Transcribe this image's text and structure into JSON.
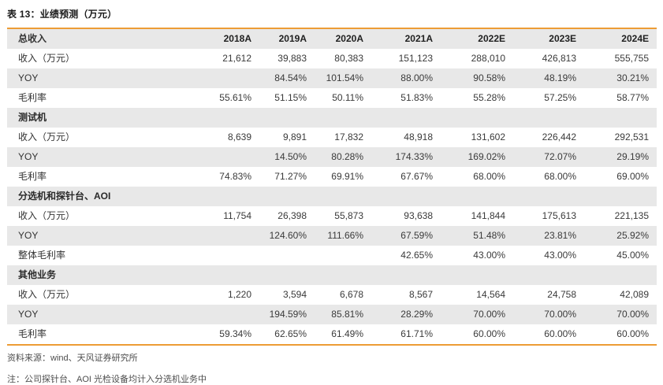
{
  "title": "表 13：业绩预测（万元）",
  "source": "资料来源：wind、天风证券研究所",
  "note": "注：公司探针台、AOI 光检设备均计入分选机业务中",
  "colors": {
    "accent": "#ED9C35",
    "row_shade": "#E8E8E8"
  },
  "table": {
    "columns": [
      "总收入",
      "2018A",
      "2019A",
      "2020A",
      "2021A",
      "2022E",
      "2023E",
      "2024E"
    ],
    "rows": [
      {
        "label": "收入（万元）",
        "shade": false,
        "section": false,
        "values": [
          "21,612",
          "39,883",
          "80,383",
          "151,123",
          "288,010",
          "426,813",
          "555,755"
        ]
      },
      {
        "label": "YOY",
        "shade": true,
        "section": false,
        "values": [
          "",
          "84.54%",
          "101.54%",
          "88.00%",
          "90.58%",
          "48.19%",
          "30.21%"
        ]
      },
      {
        "label": "毛利率",
        "shade": false,
        "section": false,
        "values": [
          "55.61%",
          "51.15%",
          "50.11%",
          "51.83%",
          "55.28%",
          "57.25%",
          "58.77%"
        ]
      },
      {
        "label": "测试机",
        "shade": true,
        "section": true,
        "values": [
          "",
          "",
          "",
          "",
          "",
          "",
          ""
        ]
      },
      {
        "label": "收入（万元）",
        "shade": false,
        "section": false,
        "values": [
          "8,639",
          "9,891",
          "17,832",
          "48,918",
          "131,602",
          "226,442",
          "292,531"
        ]
      },
      {
        "label": "YOY",
        "shade": true,
        "section": false,
        "values": [
          "",
          "14.50%",
          "80.28%",
          "174.33%",
          "169.02%",
          "72.07%",
          "29.19%"
        ]
      },
      {
        "label": "毛利率",
        "shade": false,
        "section": false,
        "values": [
          "74.83%",
          "71.27%",
          "69.91%",
          "67.67%",
          "68.00%",
          "68.00%",
          "69.00%"
        ]
      },
      {
        "label": "分选机和探针台、AOI",
        "shade": true,
        "section": true,
        "values": [
          "",
          "",
          "",
          "",
          "",
          "",
          ""
        ]
      },
      {
        "label": "收入（万元）",
        "shade": false,
        "section": false,
        "values": [
          "11,754",
          "26,398",
          "55,873",
          "93,638",
          "141,844",
          "175,613",
          "221,135"
        ]
      },
      {
        "label": "YOY",
        "shade": true,
        "section": false,
        "values": [
          "",
          "124.60%",
          "111.66%",
          "67.59%",
          "51.48%",
          "23.81%",
          "25.92%"
        ]
      },
      {
        "label": "整体毛利率",
        "shade": false,
        "section": false,
        "values": [
          "",
          "",
          "",
          "42.65%",
          "43.00%",
          "43.00%",
          "45.00%"
        ]
      },
      {
        "label": "其他业务",
        "shade": true,
        "section": true,
        "values": [
          "",
          "",
          "",
          "",
          "",
          "",
          ""
        ]
      },
      {
        "label": "收入（万元）",
        "shade": false,
        "section": false,
        "values": [
          "1,220",
          "3,594",
          "6,678",
          "8,567",
          "14,564",
          "24,758",
          "42,089"
        ]
      },
      {
        "label": "YOY",
        "shade": true,
        "section": false,
        "values": [
          "",
          "194.59%",
          "85.81%",
          "28.29%",
          "70.00%",
          "70.00%",
          "70.00%"
        ]
      },
      {
        "label": "毛利率",
        "shade": false,
        "section": false,
        "values": [
          "59.34%",
          "62.65%",
          "61.49%",
          "61.71%",
          "60.00%",
          "60.00%",
          "60.00%"
        ]
      }
    ]
  }
}
